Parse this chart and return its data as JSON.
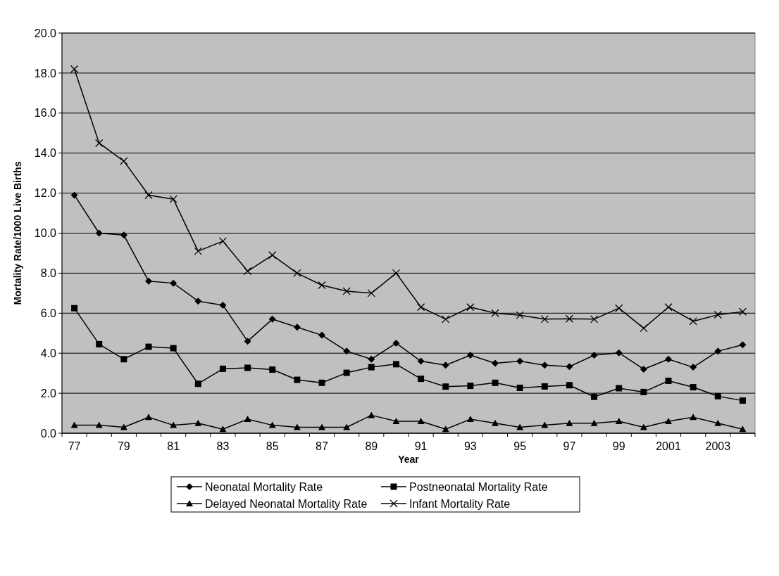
{
  "chart_data": {
    "type": "line",
    "xlabel": "Year",
    "ylabel": "Mortality Rate/1000 Live Births",
    "categories": [
      "77",
      null,
      "79",
      null,
      "81",
      null,
      "83",
      null,
      "85",
      null,
      "87",
      null,
      "89",
      null,
      "91",
      null,
      "93",
      null,
      "95",
      null,
      "97",
      null,
      "99",
      null,
      "2001",
      null,
      "2003",
      null
    ],
    "ylim": [
      0,
      20
    ],
    "yticks": [
      {
        "value": 0,
        "label": "0.0"
      },
      {
        "value": 2,
        "label": "2.0"
      },
      {
        "value": 4,
        "label": "4.0"
      },
      {
        "value": 6,
        "label": "6.0"
      },
      {
        "value": 8,
        "label": "8.0"
      },
      {
        "value": 10,
        "label": "10.0"
      },
      {
        "value": 12,
        "label": "12.0"
      },
      {
        "value": 14,
        "label": "14.0"
      },
      {
        "value": 16,
        "label": "16.0"
      },
      {
        "value": 18,
        "label": "18.0"
      },
      {
        "value": 20,
        "label": "20.0"
      }
    ],
    "grid": "y",
    "legend": "bottom",
    "line_style": "solid",
    "series": [
      {
        "name": "Neonatal Mortality Rate",
        "color": "#000000",
        "marker": "diamond",
        "values": [
          11.9,
          10.0,
          9.9,
          7.6,
          7.5,
          6.6,
          6.4,
          4.6,
          5.7,
          5.3,
          4.9,
          4.1,
          3.7,
          4.5,
          3.6,
          3.4,
          3.9,
          3.5,
          3.6,
          3.4,
          3.33,
          3.9,
          4.02,
          3.2,
          3.7,
          3.3,
          4.1,
          4.42
        ]
      },
      {
        "name": "Postneonatal Mortality Rate",
        "color": "#000000",
        "marker": "square",
        "values": [
          6.25,
          4.45,
          3.7,
          4.32,
          4.25,
          2.47,
          3.22,
          3.27,
          3.18,
          2.67,
          2.52,
          3.02,
          3.3,
          3.45,
          2.72,
          2.33,
          2.37,
          2.52,
          2.27,
          2.34,
          2.4,
          1.82,
          2.25,
          2.06,
          2.62,
          2.3,
          1.85,
          1.63
        ]
      },
      {
        "name": "Delayed Neonatal Mortality Rate",
        "color": "#000000",
        "marker": "triangle",
        "values": [
          0.4,
          0.4,
          0.3,
          0.8,
          0.4,
          0.5,
          0.2,
          0.7,
          0.4,
          0.3,
          0.3,
          0.3,
          0.9,
          0.6,
          0.6,
          0.2,
          0.7,
          0.5,
          0.3,
          0.4,
          0.5,
          0.5,
          0.6,
          0.3,
          0.6,
          0.8,
          0.5,
          0.2
        ]
      },
      {
        "name": "Infant Mortality Rate",
        "color": "#000000",
        "marker": "cross",
        "values": [
          18.2,
          14.5,
          13.6,
          11.9,
          11.7,
          9.1,
          9.6,
          8.1,
          8.9,
          8.0,
          7.4,
          7.1,
          7.0,
          8.0,
          6.3,
          5.7,
          6.3,
          6.0,
          5.9,
          5.7,
          5.72,
          5.7,
          6.25,
          5.25,
          6.3,
          5.6,
          5.92,
          6.07
        ]
      }
    ]
  }
}
